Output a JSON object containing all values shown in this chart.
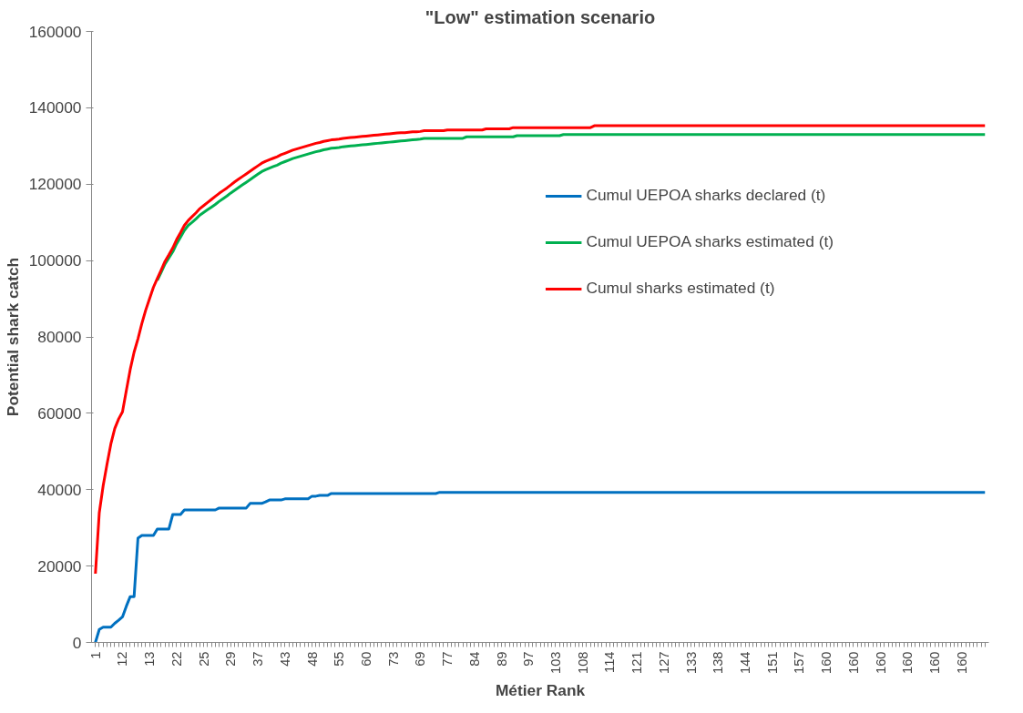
{
  "chart_data": {
    "type": "line",
    "title": "\"Low\" estimation scenario",
    "xlabel": "Métier Rank",
    "ylabel": "Potential shark catch",
    "categories": [
      "1",
      null,
      null,
      null,
      null,
      null,
      null,
      "12",
      null,
      null,
      null,
      null,
      null,
      null,
      "13",
      null,
      null,
      null,
      null,
      null,
      null,
      "22",
      null,
      null,
      null,
      null,
      null,
      null,
      "25",
      null,
      null,
      null,
      null,
      null,
      null,
      "29",
      null,
      null,
      null,
      null,
      null,
      null,
      "37",
      null,
      null,
      null,
      null,
      null,
      null,
      "43",
      null,
      null,
      null,
      null,
      null,
      null,
      "48",
      null,
      null,
      null,
      null,
      null,
      null,
      "55",
      null,
      null,
      null,
      null,
      null,
      null,
      "60",
      null,
      null,
      null,
      null,
      null,
      null,
      "73",
      null,
      null,
      null,
      null,
      null,
      null,
      "69",
      null,
      null,
      null,
      null,
      null,
      null,
      "77",
      null,
      null,
      null,
      null,
      null,
      null,
      "84",
      null,
      null,
      null,
      null,
      null,
      null,
      "89",
      null,
      null,
      null,
      null,
      null,
      null,
      "97",
      null,
      null,
      null,
      null,
      null,
      null,
      "103",
      null,
      null,
      null,
      null,
      null,
      null,
      "108",
      null,
      null,
      null,
      null,
      null,
      null,
      "114",
      null,
      null,
      null,
      null,
      null,
      null,
      "121",
      null,
      null,
      null,
      null,
      null,
      null,
      "127",
      null,
      null,
      null,
      null,
      null,
      null,
      "133",
      null,
      null,
      null,
      null,
      null,
      null,
      "138",
      null,
      null,
      null,
      null,
      null,
      null,
      "144",
      null,
      null,
      null,
      null,
      null,
      null,
      "151",
      null,
      null,
      null,
      null,
      null,
      null,
      "157",
      null,
      null,
      null,
      null,
      null,
      null,
      "160",
      null,
      null,
      null,
      null,
      null,
      null,
      "160",
      null,
      null,
      null,
      null,
      null,
      null,
      "160",
      null,
      null,
      null,
      null,
      null,
      null,
      "160",
      null,
      null,
      null,
      null,
      null,
      null,
      "160",
      null,
      null,
      null,
      null,
      null,
      null,
      "160",
      null,
      null,
      null,
      null,
      null,
      null
    ],
    "series": [
      {
        "name": "Cumul UEPOA sharks declared (t)",
        "color": "#0070c0",
        "values": [
          0,
          3400,
          4000,
          4000,
          4000,
          5000,
          5800,
          6700,
          9500,
          12000,
          12000,
          27300,
          28000,
          28000,
          28000,
          28000,
          29700,
          29700,
          29700,
          29700,
          33500,
          33500,
          33500,
          34700,
          34700,
          34700,
          34700,
          34700,
          34700,
          34700,
          34700,
          34700,
          35200,
          35200,
          35200,
          35200,
          35200,
          35200,
          35200,
          35200,
          36400,
          36400,
          36400,
          36400,
          36800,
          37300,
          37300,
          37300,
          37300,
          37600,
          37600,
          37600,
          37600,
          37600,
          37600,
          37600,
          38300,
          38300,
          38500,
          38500,
          38500,
          39000,
          39000,
          39000,
          39000,
          39000,
          39000,
          39000,
          39000,
          39000,
          39000,
          39000,
          39000,
          39000,
          39000,
          39000,
          39000,
          39000,
          39000,
          39000,
          39000,
          39000,
          39000,
          39000,
          39000,
          39000,
          39000,
          39000,
          39000,
          39300,
          39300,
          39300,
          39300,
          39300,
          39300,
          39300,
          39300,
          39300,
          39300,
          39300,
          39300,
          39300,
          39300,
          39300,
          39300,
          39300,
          39300,
          39300,
          39300,
          39300,
          39300,
          39300,
          39300,
          39300,
          39300,
          39300,
          39300,
          39300,
          39300,
          39300,
          39300,
          39300,
          39300,
          39300,
          39300,
          39300,
          39300,
          39300,
          39300,
          39300,
          39300,
          39300,
          39300,
          39300,
          39300,
          39300,
          39300,
          39300,
          39300,
          39300,
          39300,
          39300,
          39300,
          39300,
          39300,
          39300,
          39300,
          39300,
          39300,
          39300,
          39300,
          39300,
          39300,
          39300,
          39300,
          39300,
          39300,
          39300,
          39300,
          39300,
          39300,
          39300,
          39300,
          39300,
          39300,
          39300,
          39300,
          39300,
          39300,
          39300,
          39300,
          39300,
          39300,
          39300,
          39300,
          39300,
          39300,
          39300,
          39300,
          39300,
          39300,
          39300,
          39300,
          39300,
          39300,
          39300,
          39300,
          39300,
          39300,
          39300,
          39300,
          39300,
          39300,
          39300,
          39300,
          39300,
          39300,
          39300,
          39300,
          39300,
          39300,
          39300,
          39300,
          39300,
          39300,
          39300,
          39300,
          39300,
          39300,
          39300,
          39300,
          39300,
          39300,
          39300,
          39300,
          39300,
          39300,
          39300,
          39300,
          39300,
          39300,
          39300,
          39300,
          39300,
          39300,
          39300,
          39300,
          39300,
          39300,
          39300,
          39300
        ]
      },
      {
        "name": "Cumul UEPOA sharks estimated (t)",
        "color": "#00b050",
        "values": [
          null,
          null,
          null,
          null,
          null,
          null,
          null,
          null,
          null,
          null,
          null,
          null,
          null,
          null,
          null,
          null,
          94800,
          96900,
          99100,
          100700,
          102300,
          104400,
          106100,
          107900,
          109200,
          110000,
          110900,
          111900,
          112600,
          113300,
          114000,
          114700,
          115500,
          116200,
          116900,
          117700,
          118400,
          119100,
          119800,
          120500,
          121200,
          121900,
          122600,
          123300,
          123800,
          124200,
          124600,
          125000,
          125500,
          125900,
          126300,
          126700,
          127000,
          127300,
          127600,
          127900,
          128200,
          128500,
          128700,
          129000,
          129200,
          129400,
          129500,
          129600,
          129800,
          129900,
          130000,
          130100,
          130200,
          130300,
          130400,
          130500,
          130600,
          130700,
          130800,
          130900,
          131000,
          131100,
          131200,
          131300,
          131400,
          131500,
          131600,
          131700,
          131800,
          132000,
          132000,
          132000,
          132000,
          132000,
          132000,
          132000,
          132000,
          132000,
          132000,
          132000,
          132400,
          132400,
          132400,
          132400,
          132400,
          132400,
          132400,
          132400,
          132400,
          132400,
          132400,
          132400,
          132400,
          132700,
          132700,
          132700,
          132700,
          132700,
          132700,
          132700,
          132700,
          132700,
          132700,
          132700,
          132700,
          133000,
          133000,
          133000,
          133000,
          133000,
          133000,
          133000,
          133000,
          133000,
          133000,
          133000,
          133000,
          133000,
          133000,
          133000,
          133000,
          133000,
          133000,
          133000,
          133000,
          133000,
          133000,
          133000,
          133000,
          133000,
          133000,
          133000,
          133000,
          133000,
          133000,
          133000,
          133000,
          133000,
          133000,
          133000,
          133000,
          133000,
          133000,
          133000,
          133000,
          133000,
          133000,
          133000,
          133000,
          133000,
          133000,
          133000,
          133000,
          133000,
          133000,
          133000,
          133000,
          133000,
          133000,
          133000,
          133000,
          133000,
          133000,
          133000,
          133000,
          133000,
          133000,
          133000,
          133000,
          133000,
          133000,
          133000,
          133000,
          133000,
          133000,
          133000,
          133000,
          133000,
          133000,
          133000,
          133000,
          133000,
          133000,
          133000,
          133000,
          133000,
          133000,
          133000,
          133000,
          133000,
          133000,
          133000,
          133000,
          133000,
          133000,
          133000,
          133000,
          133000,
          133000,
          133000,
          133000,
          133000,
          133000,
          133000,
          133000,
          133000,
          133000,
          133000,
          133000,
          133000,
          133000,
          133000,
          133000,
          133000,
          133000
        ]
      },
      {
        "name": "Cumul sharks estimated (t)",
        "color": "#ff0000",
        "values": [
          18000,
          34000,
          41000,
          46700,
          52000,
          56000,
          58500,
          60400,
          66000,
          71500,
          76000,
          79500,
          83500,
          87000,
          90000,
          93000,
          95300,
          97500,
          99800,
          101500,
          103300,
          105500,
          107300,
          109200,
          110500,
          111500,
          112500,
          113600,
          114400,
          115200,
          116000,
          116800,
          117600,
          118300,
          119000,
          119800,
          120600,
          121300,
          122000,
          122700,
          123400,
          124100,
          124800,
          125500,
          126000,
          126400,
          126800,
          127200,
          127700,
          128100,
          128500,
          128900,
          129200,
          129500,
          129800,
          130100,
          130400,
          130700,
          130900,
          131200,
          131400,
          131600,
          131700,
          131800,
          132000,
          132100,
          132200,
          132300,
          132400,
          132500,
          132600,
          132700,
          132800,
          132900,
          133000,
          133100,
          133200,
          133300,
          133400,
          133500,
          133500,
          133600,
          133700,
          133700,
          133800,
          134000,
          134000,
          134000,
          134000,
          134000,
          134000,
          134200,
          134200,
          134200,
          134200,
          134200,
          134200,
          134200,
          134200,
          134200,
          134200,
          134500,
          134500,
          134500,
          134500,
          134500,
          134500,
          134500,
          134800,
          134800,
          134800,
          134800,
          134800,
          134800,
          134800,
          134800,
          134800,
          134800,
          134800,
          134800,
          134800,
          134800,
          134800,
          134800,
          134800,
          134800,
          134800,
          134800,
          134800,
          135300,
          135300,
          135300,
          135300,
          135300,
          135300,
          135300,
          135300,
          135300,
          135300,
          135300,
          135300,
          135300,
          135300,
          135300,
          135300,
          135300,
          135300,
          135300,
          135300,
          135300,
          135300,
          135300,
          135300,
          135300,
          135300,
          135300,
          135300,
          135300,
          135300,
          135300,
          135300,
          135300,
          135300,
          135300,
          135300,
          135300,
          135300,
          135300,
          135300,
          135300,
          135300,
          135300,
          135300,
          135300,
          135300,
          135300,
          135300,
          135300,
          135300,
          135300,
          135300,
          135300,
          135300,
          135300,
          135300,
          135300,
          135300,
          135300,
          135300,
          135300,
          135300,
          135300,
          135300,
          135300,
          135300,
          135300,
          135300,
          135300,
          135300,
          135300,
          135300,
          135300,
          135300,
          135300,
          135300,
          135300,
          135300,
          135300,
          135300,
          135300,
          135300,
          135300,
          135300,
          135300,
          135300,
          135300,
          135300,
          135300,
          135300,
          135300,
          135300,
          135300,
          135300,
          135300,
          135300,
          135300,
          135300,
          135300,
          135300,
          135300,
          135300
        ]
      }
    ],
    "ylim": [
      0,
      160000
    ],
    "yticks": [
      0,
      20000,
      40000,
      60000,
      80000,
      100000,
      120000,
      140000,
      160000
    ],
    "grid": false,
    "legend": "top right"
  }
}
